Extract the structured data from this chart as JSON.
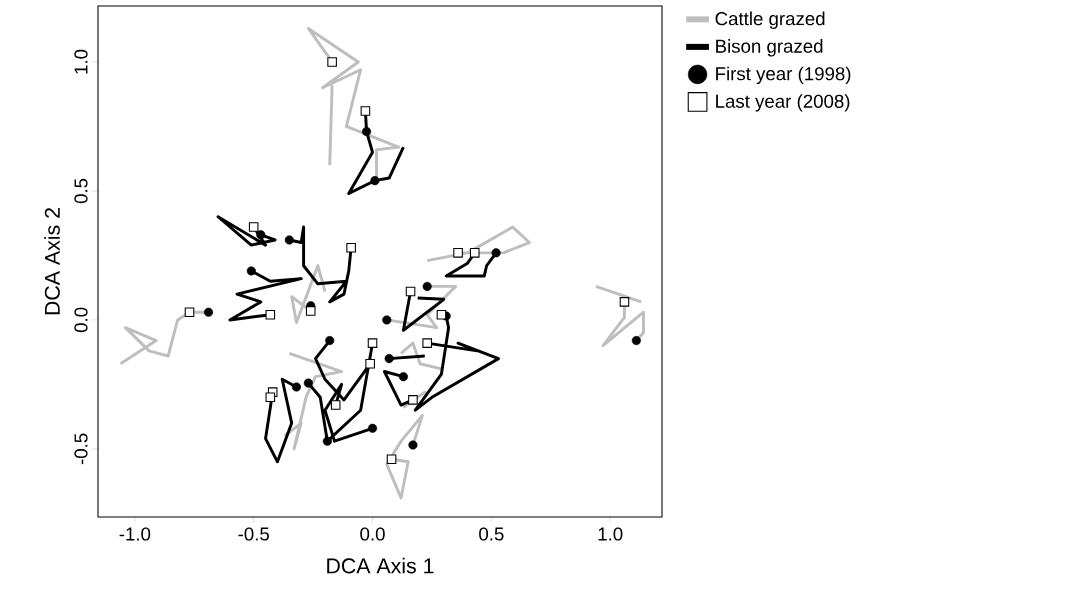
{
  "chart_data": {
    "type": "line",
    "xlabel": "DCA Axis 1",
    "ylabel": "DCA Axis 2",
    "xlim": [
      -1.155,
      1.218
    ],
    "ylim": [
      -0.764,
      1.217
    ],
    "xticks": [
      {
        "value": -1,
        "label": "-1.0"
      },
      {
        "value": -0.5,
        "label": "-0.5"
      },
      {
        "value": 0,
        "label": "0.0"
      },
      {
        "value": 0.5,
        "label": "0.5"
      },
      {
        "value": 1,
        "label": "1.0"
      }
    ],
    "yticks": [
      {
        "value": -0.5,
        "label": "-0.5"
      },
      {
        "value": 0,
        "label": "0.0"
      },
      {
        "value": 0.5,
        "label": "0.5"
      },
      {
        "value": 1,
        "label": "1.0"
      }
    ],
    "grid": false,
    "legend": "top right",
    "series": [
      {
        "name": "Cattle grazed",
        "marker": "none",
        "color": "#bebebe",
        "x": [
          0.017,
          0.017,
          0.11,
          -0.11,
          -0.05,
          -0.21,
          -0.06,
          -0.27,
          -0.17,
          null,
          -0.18,
          -0.17,
          null,
          -0.2,
          -0.23,
          -0.32,
          -0.34,
          -0.26,
          null,
          -1.06,
          -0.91,
          -1.04,
          -0.94,
          -0.86,
          -0.82,
          -0.77,
          -0.69,
          null,
          1.11,
          1.14,
          1.14,
          0.97,
          1.06,
          1.06,
          null,
          0.94,
          1.13,
          null,
          0.23,
          0.4,
          0.59,
          0.66,
          0.55,
          0.36,
          null,
          0.06,
          0.27,
          0.23,
          0.35,
          0.23,
          null,
          0.17,
          0.21,
          0.12,
          0.06,
          0.12,
          0.15,
          0.08,
          null,
          -0.35,
          -0.13,
          -0.24,
          -0.28,
          -0.33,
          -0.3,
          -0.37,
          null,
          0.12,
          0.17,
          0.2,
          0.29,
          null,
          0.13,
          0.22,
          0.17
        ],
        "values": [
          0.55,
          0.66,
          0.67,
          0.75,
          0.97,
          0.9,
          1.0,
          1.13,
          1.0,
          null,
          0.6,
          0.91,
          null,
          0.11,
          0.21,
          -0.01,
          0.09,
          0.035,
          null,
          -0.17,
          -0.08,
          -0.03,
          -0.12,
          -0.14,
          0.0,
          0.03,
          0.03,
          null,
          -0.08,
          -0.05,
          0.03,
          -0.1,
          0.01,
          0.07,
          null,
          0.13,
          0.07,
          null,
          0.23,
          0.26,
          0.36,
          0.3,
          0.26,
          0.26,
          null,
          0.0,
          -0.03,
          0.02,
          0.13,
          0.13,
          null,
          -0.485,
          -0.37,
          -0.47,
          -0.56,
          -0.69,
          -0.55,
          -0.54,
          null,
          -0.13,
          -0.2,
          -0.22,
          -0.3,
          -0.5,
          -0.4,
          -0.45,
          null,
          -0.13,
          -0.09,
          -0.17,
          -0.19,
          null,
          -0.34,
          -0.28,
          -0.31
        ]
      },
      {
        "name": "Bison grazed",
        "marker": "none",
        "color": "#000000",
        "x": [
          0.13,
          0.07,
          0.01,
          -0.1,
          0.0,
          -0.025,
          -0.03,
          null,
          -0.47,
          -0.41,
          -0.51,
          -0.65,
          -0.45,
          -0.5,
          null,
          -0.35,
          -0.3,
          -0.29,
          -0.29,
          -0.23,
          -0.11,
          -0.18,
          -0.12,
          -0.1,
          -0.09,
          null,
          -0.51,
          -0.43,
          -0.3,
          -0.57,
          -0.47,
          -0.6,
          -0.43,
          null,
          0.52,
          0.48,
          0.47,
          0.31,
          0.4,
          0.43,
          null,
          0.19,
          0.3,
          0.13,
          0.16,
          null,
          0.31,
          0.32,
          0.29,
          0.18,
          0.25,
          0.53,
          0.36,
          0.44,
          0.23,
          null,
          0.07,
          0.22,
          null,
          -0.18,
          -0.24,
          -0.2,
          -0.12,
          -0.01,
          null,
          -0.27,
          -0.22,
          -0.19,
          -0.05,
          0.0,
          null,
          -0.32,
          -0.38,
          -0.34,
          -0.4,
          -0.45,
          -0.42,
          null,
          0.0,
          -0.16,
          -0.2,
          -0.13,
          -0.155,
          null,
          0.13,
          0.05,
          0.12,
          0.17
        ],
        "values": [
          0.67,
          0.55,
          0.54,
          0.49,
          0.65,
          0.73,
          0.81,
          null,
          0.33,
          0.31,
          0.29,
          0.4,
          0.29,
          0.36,
          null,
          0.31,
          0.3,
          0.36,
          0.21,
          0.14,
          0.15,
          0.07,
          0.1,
          0.19,
          0.28,
          null,
          0.19,
          0.15,
          0.16,
          0.1,
          0.07,
          0.0,
          0.02,
          null,
          0.26,
          0.21,
          0.17,
          0.17,
          0.22,
          0.26,
          null,
          0.085,
          0.08,
          -0.04,
          0.11,
          null,
          0.015,
          -0.03,
          -0.21,
          -0.35,
          -0.3,
          -0.15,
          -0.09,
          -0.12,
          -0.09,
          null,
          -0.15,
          -0.14,
          null,
          -0.08,
          -0.15,
          -0.23,
          -0.31,
          -0.17,
          null,
          -0.245,
          -0.3,
          -0.47,
          -0.35,
          -0.09,
          null,
          -0.26,
          -0.23,
          -0.4,
          -0.55,
          -0.46,
          -0.28,
          null,
          -0.42,
          -0.47,
          -0.35,
          -0.25,
          -0.33,
          null,
          -0.22,
          -0.2,
          -0.33,
          -0.31
        ]
      },
      {
        "name": "First year (1998)",
        "type": "scatter",
        "marker": "circle",
        "color": "#000000",
        "x": [
          -0.025,
          0.01,
          -0.47,
          -0.35,
          -0.51,
          -0.26,
          -0.69,
          0.52,
          0.23,
          0.06,
          0.31,
          0.07,
          0.13,
          -0.18,
          -0.27,
          -0.32,
          -0.19,
          0.0,
          0.17,
          1.11
        ],
        "values": [
          0.73,
          0.54,
          0.33,
          0.31,
          0.19,
          0.055,
          0.03,
          0.26,
          0.13,
          0.0,
          0.015,
          -0.15,
          -0.22,
          -0.08,
          -0.245,
          -0.26,
          -0.47,
          -0.42,
          -0.485,
          -0.08
        ]
      },
      {
        "name": "Last year (2008)",
        "type": "scatter",
        "marker": "square",
        "color": "#000000",
        "x": [
          -0.17,
          -0.03,
          -0.5,
          -0.09,
          -0.43,
          -0.26,
          -0.77,
          0.36,
          0.43,
          0.16,
          0.29,
          0.23,
          0.0,
          -0.01,
          -0.42,
          -0.43,
          -0.155,
          0.17,
          0.08,
          1.06
        ],
        "values": [
          1.0,
          0.81,
          0.36,
          0.28,
          0.02,
          0.035,
          0.03,
          0.26,
          0.26,
          0.11,
          0.02,
          -0.09,
          -0.09,
          -0.17,
          -0.28,
          -0.3,
          -0.33,
          -0.31,
          -0.54,
          0.07
        ]
      }
    ]
  }
}
